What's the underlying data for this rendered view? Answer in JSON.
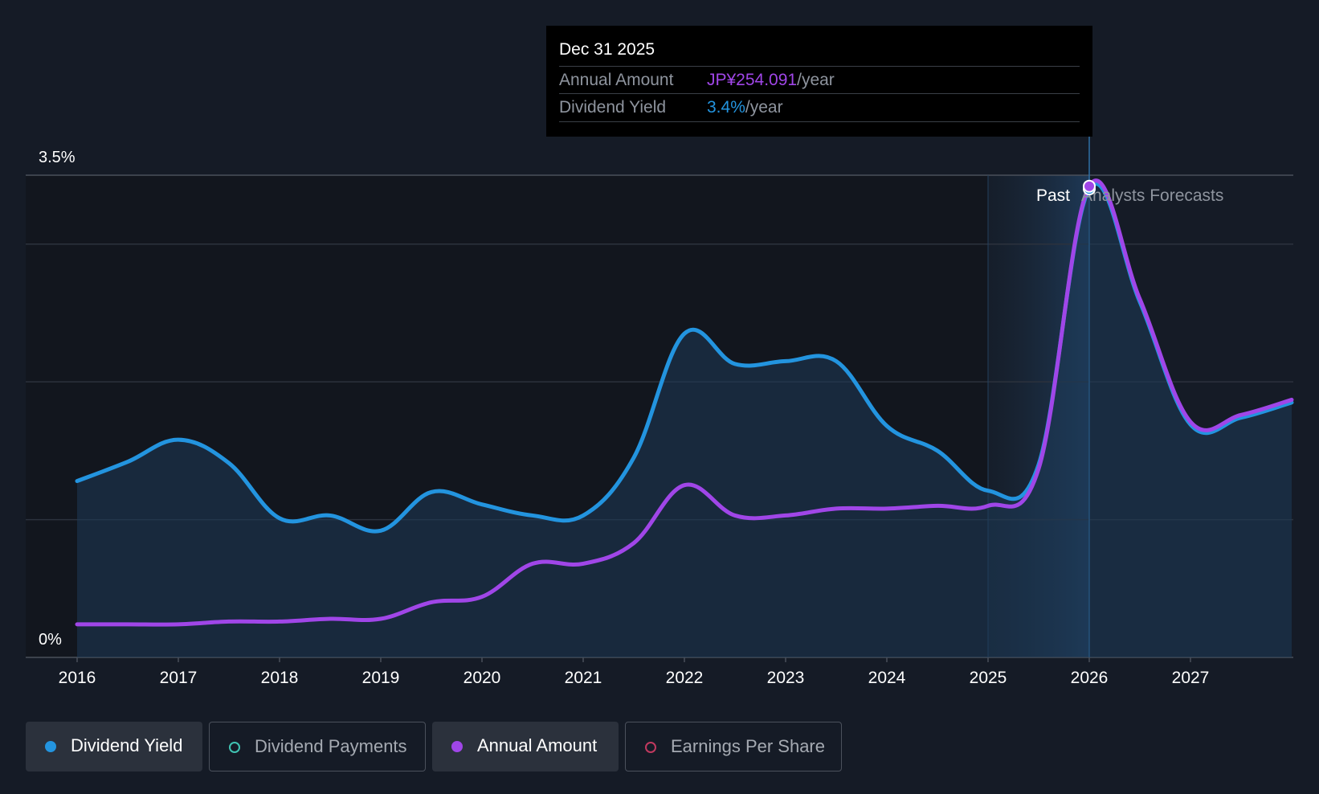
{
  "chart_data": {
    "type": "line",
    "x_domain": [
      2016,
      2028.0
    ],
    "ylim": [
      0,
      3.5
    ],
    "y_ticks": [
      {
        "value": 3.5,
        "label": "3.5%"
      },
      {
        "value": 0,
        "label": "0%"
      }
    ],
    "gridlines": [
      1.0,
      2.0,
      3.0
    ],
    "x_ticks": [
      "2016",
      "2017",
      "2018",
      "2019",
      "2020",
      "2021",
      "2022",
      "2023",
      "2024",
      "2025",
      "2026",
      "2027"
    ],
    "x_tick_values": [
      2016,
      2017,
      2018,
      2019,
      2020,
      2021,
      2022,
      2023,
      2024,
      2025,
      2026,
      2027
    ],
    "past_label": "Past",
    "forecast_label": "Analysts Forecasts",
    "forecast_start": 2025.0,
    "highlight_x": 2026.0,
    "series": [
      {
        "name": "Dividend Yield",
        "color": "#2394df",
        "fill": true,
        "points": [
          [
            2016.0,
            1.28
          ],
          [
            2016.5,
            1.42
          ],
          [
            2017.0,
            1.58
          ],
          [
            2017.5,
            1.41
          ],
          [
            2018.0,
            1.01
          ],
          [
            2018.5,
            1.03
          ],
          [
            2019.0,
            0.92
          ],
          [
            2019.5,
            1.2
          ],
          [
            2020.0,
            1.11
          ],
          [
            2020.5,
            1.03
          ],
          [
            2021.0,
            1.03
          ],
          [
            2021.5,
            1.45
          ],
          [
            2022.0,
            2.35
          ],
          [
            2022.5,
            2.13
          ],
          [
            2023.0,
            2.15
          ],
          [
            2023.5,
            2.15
          ],
          [
            2024.0,
            1.68
          ],
          [
            2024.5,
            1.5
          ],
          [
            2025.0,
            1.21
          ],
          [
            2025.5,
            1.4
          ],
          [
            2026.0,
            3.4
          ],
          [
            2026.5,
            2.58
          ],
          [
            2027.0,
            1.69
          ],
          [
            2027.5,
            1.74
          ],
          [
            2028.0,
            1.85
          ]
        ]
      },
      {
        "name": "Annual Amount",
        "color": "#a046e8",
        "fill": false,
        "points": [
          [
            2016.0,
            0.24
          ],
          [
            2016.5,
            0.24
          ],
          [
            2017.0,
            0.24
          ],
          [
            2017.5,
            0.26
          ],
          [
            2018.0,
            0.26
          ],
          [
            2018.5,
            0.28
          ],
          [
            2019.0,
            0.28
          ],
          [
            2019.5,
            0.4
          ],
          [
            2020.0,
            0.44
          ],
          [
            2020.5,
            0.68
          ],
          [
            2021.0,
            0.68
          ],
          [
            2021.5,
            0.83
          ],
          [
            2022.0,
            1.25
          ],
          [
            2022.5,
            1.03
          ],
          [
            2023.0,
            1.03
          ],
          [
            2023.5,
            1.08
          ],
          [
            2024.0,
            1.08
          ],
          [
            2024.5,
            1.1
          ],
          [
            2025.0,
            1.1
          ],
          [
            2025.5,
            1.37
          ],
          [
            2026.0,
            3.42
          ],
          [
            2026.5,
            2.6
          ],
          [
            2027.0,
            1.71
          ],
          [
            2027.5,
            1.76
          ],
          [
            2028.0,
            1.87
          ]
        ]
      }
    ]
  },
  "tooltip": {
    "date": "Dec 31 2025",
    "annual_label": "Annual Amount",
    "annual_value": "JP¥254.091",
    "annual_unit": "/year",
    "yield_label": "Dividend Yield",
    "yield_value": "3.4%",
    "yield_unit": "/year"
  },
  "legend": {
    "items": [
      {
        "label": "Dividend Yield",
        "color": "#2394df",
        "active": true
      },
      {
        "label": "Dividend Payments",
        "color": "#40c3b2",
        "active": false
      },
      {
        "label": "Annual Amount",
        "color": "#a046e8",
        "active": true
      },
      {
        "label": "Earnings Per Share",
        "color": "#c0395f",
        "active": false
      }
    ]
  },
  "colors": {
    "background": "#151b26",
    "yield": "#2394df",
    "annual": "#a046e8",
    "tooltip_amount": "#a046e8",
    "tooltip_yield": "#2394df"
  }
}
